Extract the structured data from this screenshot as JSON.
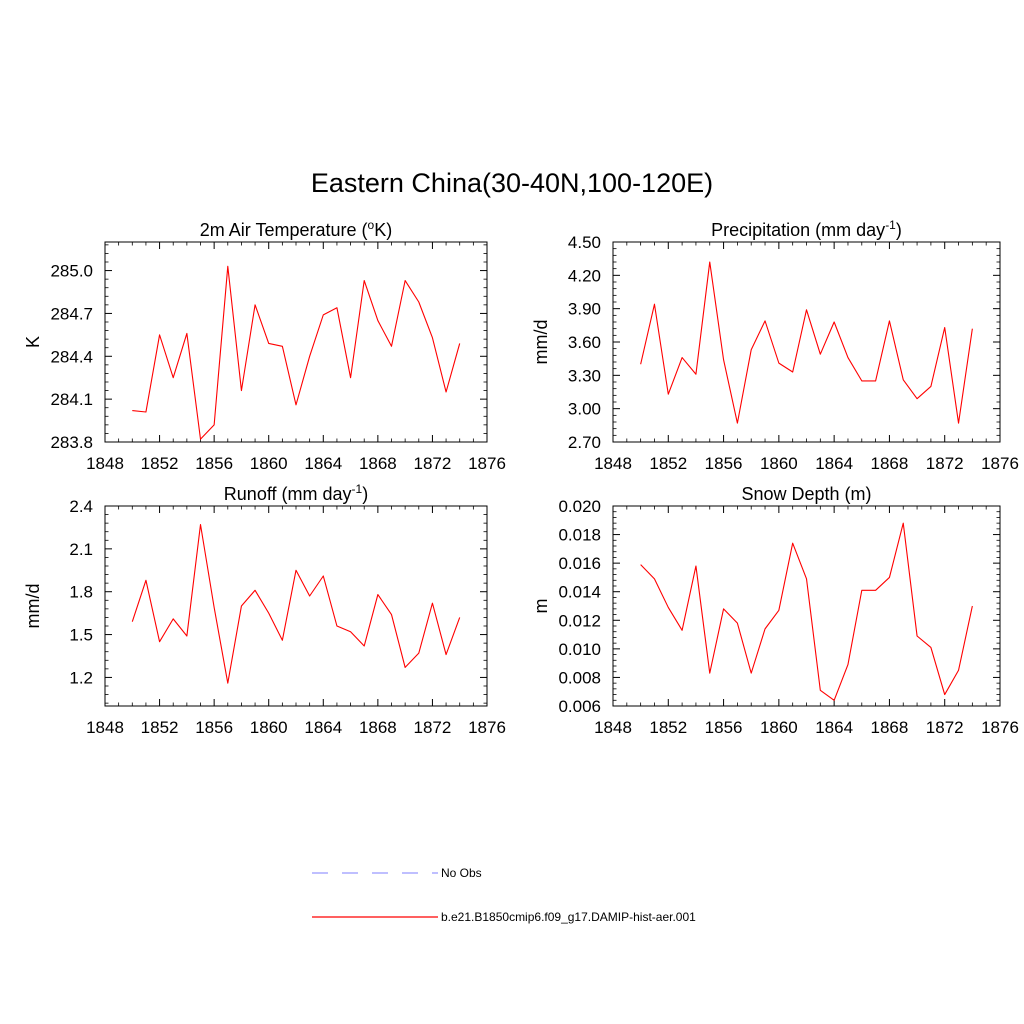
{
  "title": "Eastern China(30-40N,100-120E)",
  "chart_data": [
    {
      "type": "line",
      "title": "2m Air Temperature (",
      "title_sup": "o",
      "title_tail": "K)",
      "ylabel": "K",
      "xlim": [
        1848,
        1876
      ],
      "xticks": [
        1848,
        1852,
        1856,
        1860,
        1864,
        1868,
        1872,
        1876
      ],
      "ylim": [
        283.8,
        285.2
      ],
      "yticks": [
        "283.8",
        "284.1",
        "284.4",
        "284.7",
        "285.0"
      ],
      "x": [
        1850,
        1851,
        1852,
        1853,
        1854,
        1855,
        1856,
        1857,
        1858,
        1859,
        1860,
        1861,
        1862,
        1863,
        1864,
        1865,
        1866,
        1867,
        1868,
        1869,
        1870,
        1871,
        1872,
        1873,
        1874
      ],
      "series": [
        {
          "values": [
            284.02,
            284.01,
            284.55,
            284.25,
            284.56,
            283.82,
            283.92,
            285.03,
            284.16,
            284.76,
            284.49,
            284.47,
            284.06,
            284.4,
            284.69,
            284.74,
            284.25,
            284.93,
            284.65,
            284.47,
            284.93,
            284.78,
            284.53,
            284.15,
            284.49
          ]
        }
      ]
    },
    {
      "type": "line",
      "title": "Precipitation (mm day",
      "title_sup": "-1",
      "title_tail": ")",
      "ylabel": "mm/d",
      "xlim": [
        1848,
        1876
      ],
      "xticks": [
        1848,
        1852,
        1856,
        1860,
        1864,
        1868,
        1872,
        1876
      ],
      "ylim": [
        2.7,
        4.5
      ],
      "yticks": [
        "2.70",
        "3.00",
        "3.30",
        "3.60",
        "3.90",
        "4.20",
        "4.50"
      ],
      "x": [
        1850,
        1851,
        1852,
        1853,
        1854,
        1855,
        1856,
        1857,
        1858,
        1859,
        1860,
        1861,
        1862,
        1863,
        1864,
        1865,
        1866,
        1867,
        1868,
        1869,
        1870,
        1871,
        1872,
        1873,
        1874
      ],
      "series": [
        {
          "values": [
            3.4,
            3.94,
            3.13,
            3.46,
            3.31,
            4.32,
            3.44,
            2.87,
            3.53,
            3.79,
            3.41,
            3.33,
            3.89,
            3.49,
            3.78,
            3.46,
            3.25,
            3.25,
            3.79,
            3.26,
            3.09,
            3.2,
            3.73,
            2.87,
            3.72
          ]
        }
      ]
    },
    {
      "type": "line",
      "title": "Runoff (mm day",
      "title_sup": "-1",
      "title_tail": ")",
      "ylabel": "mm/d",
      "xlim": [
        1848,
        1876
      ],
      "xticks": [
        1848,
        1852,
        1856,
        1860,
        1864,
        1868,
        1872,
        1876
      ],
      "ylim": [
        1.0,
        2.4
      ],
      "yticks": [
        "1.2",
        "1.5",
        "1.8",
        "2.1",
        "2.4"
      ],
      "x": [
        1850,
        1851,
        1852,
        1853,
        1854,
        1855,
        1856,
        1857,
        1858,
        1859,
        1860,
        1861,
        1862,
        1863,
        1864,
        1865,
        1866,
        1867,
        1868,
        1869,
        1870,
        1871,
        1872,
        1873,
        1874
      ],
      "series": [
        {
          "values": [
            1.59,
            1.88,
            1.45,
            1.61,
            1.49,
            2.27,
            1.69,
            1.16,
            1.7,
            1.81,
            1.65,
            1.46,
            1.95,
            1.77,
            1.91,
            1.56,
            1.52,
            1.42,
            1.78,
            1.64,
            1.27,
            1.37,
            1.72,
            1.36,
            1.62
          ]
        }
      ]
    },
    {
      "type": "line",
      "title": "Snow Depth (m)",
      "title_sup": "",
      "title_tail": "",
      "ylabel": "m",
      "xlim": [
        1848,
        1876
      ],
      "xticks": [
        1848,
        1852,
        1856,
        1860,
        1864,
        1868,
        1872,
        1876
      ],
      "ylim": [
        0.006,
        0.02
      ],
      "yticks": [
        "0.006",
        "0.008",
        "0.010",
        "0.012",
        "0.014",
        "0.016",
        "0.018",
        "0.020"
      ],
      "x": [
        1850,
        1851,
        1852,
        1853,
        1854,
        1855,
        1856,
        1857,
        1858,
        1859,
        1860,
        1861,
        1862,
        1863,
        1864,
        1865,
        1866,
        1867,
        1868,
        1869,
        1870,
        1871,
        1872,
        1873,
        1874
      ],
      "series": [
        {
          "values": [
            0.0159,
            0.0149,
            0.0129,
            0.0113,
            0.0158,
            0.0083,
            0.0128,
            0.0118,
            0.0083,
            0.0114,
            0.0127,
            0.0174,
            0.0149,
            0.0071,
            0.0064,
            0.0089,
            0.0141,
            0.0141,
            0.015,
            0.0188,
            0.0109,
            0.0101,
            0.0068,
            0.0085,
            0.013
          ]
        }
      ]
    }
  ],
  "legend": {
    "items": [
      {
        "label": "No Obs",
        "color": "#9999ff",
        "style": "dashed"
      },
      {
        "label": "b.e21.B1850cmip6.f09_g17.DAMIP-hist-aer.001",
        "color": "#ff0000",
        "style": "solid"
      }
    ]
  },
  "colors": {
    "line": "#ff0000",
    "no_obs": "#9999ff"
  }
}
